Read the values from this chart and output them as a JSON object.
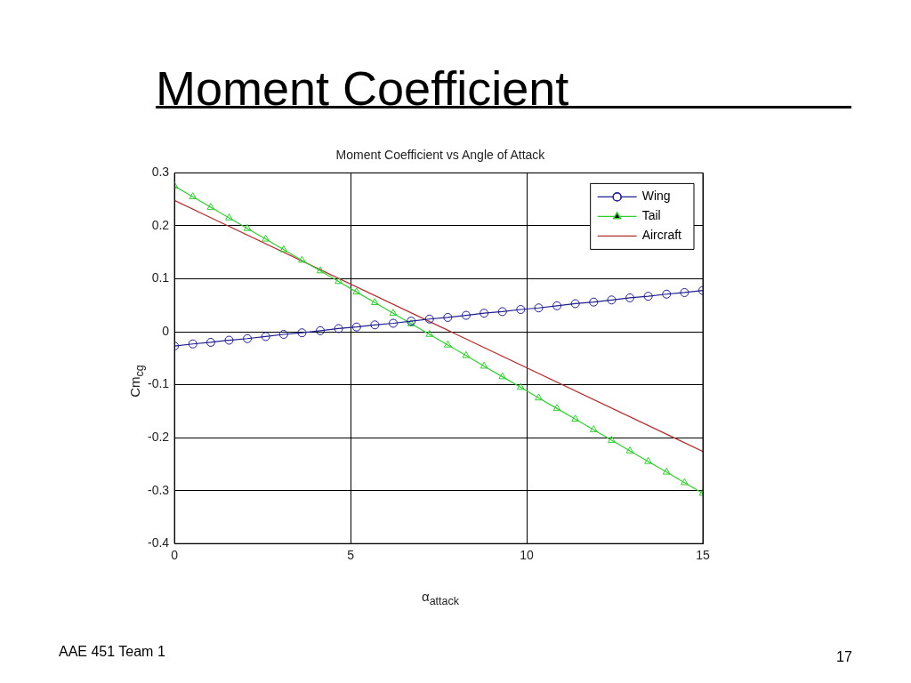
{
  "chart_data": {
    "type": "line",
    "title": "Moment Coefficient",
    "subtitle": "Moment Coefficient vs Angle of Attack",
    "xlabel": "α$_{attack}$",
    "ylabel": "Cm$_{cg}$",
    "annotations": [
      "AAE 451 Team 1",
      "17"
    ],
    "x": [
      0,
      0.52,
      1.03,
      1.55,
      2.07,
      2.59,
      3.1,
      3.62,
      4.14,
      4.66,
      5.17,
      5.69,
      6.21,
      6.72,
      7.24,
      7.76,
      8.28,
      8.79,
      9.31,
      9.83,
      10.34,
      10.86,
      11.38,
      11.9,
      12.41,
      12.93,
      13.45,
      13.97,
      14.48,
      15
    ],
    "series": [
      {
        "name": "Wing",
        "color": "#1f1f8f",
        "marker": "circle",
        "values": [
          -0.027,
          -0.023,
          -0.02,
          -0.016,
          -0.013,
          -0.009,
          -0.005,
          -0.002,
          0.002,
          0.006,
          0.009,
          0.013,
          0.016,
          0.02,
          0.024,
          0.027,
          0.031,
          0.035,
          0.038,
          0.042,
          0.045,
          0.049,
          0.053,
          0.056,
          0.06,
          0.064,
          0.067,
          0.071,
          0.074,
          0.078
        ]
      },
      {
        "name": "Tail",
        "color": "#33cc33",
        "marker": "triangle",
        "values": [
          0.275,
          0.255,
          0.235,
          0.215,
          0.195,
          0.175,
          0.155,
          0.135,
          0.115,
          0.095,
          0.075,
          0.055,
          0.035,
          0.015,
          -0.005,
          -0.025,
          -0.045,
          -0.065,
          -0.085,
          -0.105,
          -0.125,
          -0.145,
          -0.165,
          -0.185,
          -0.205,
          -0.225,
          -0.245,
          -0.265,
          -0.285,
          -0.305
        ]
      },
      {
        "name": "Aircraft",
        "color": "#b03030",
        "marker": "none",
        "x": [
          0,
          15
        ],
        "values": [
          0.248,
          -0.226
        ]
      }
    ],
    "xlim": [
      0,
      15
    ],
    "xticks": [
      0,
      5,
      10,
      15
    ],
    "ylim": [
      -0.4,
      0.3
    ],
    "yticks": [
      -0.4,
      -0.3,
      -0.2,
      -0.1,
      0,
      0.1,
      0.2,
      0.3
    ],
    "grid": true,
    "legend": "top right",
    "line_style": "solid"
  }
}
